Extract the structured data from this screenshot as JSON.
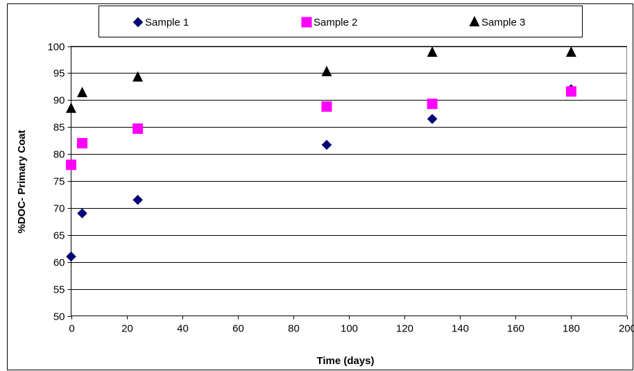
{
  "chart_data": {
    "type": "scatter",
    "title": "",
    "xlabel": "Time (days)",
    "ylabel": "%DOC- Primary Coat",
    "xlim": [
      0,
      200
    ],
    "ylim": [
      50,
      100
    ],
    "x_ticks": [
      0,
      20,
      40,
      60,
      80,
      100,
      120,
      140,
      160,
      180,
      200
    ],
    "y_ticks": [
      50,
      55,
      60,
      65,
      70,
      75,
      80,
      85,
      90,
      95,
      100
    ],
    "grid": "horizontal",
    "legend_position": "top",
    "series": [
      {
        "name": "Sample 1",
        "marker": "diamond",
        "color": "#000080",
        "x": [
          0,
          4,
          24,
          92,
          130,
          180
        ],
        "y": [
          61,
          69,
          71.5,
          81.7,
          86.5,
          92
        ]
      },
      {
        "name": "Sample 2",
        "marker": "square",
        "color": "#FF00FF",
        "x": [
          0,
          4,
          24,
          92,
          130,
          180
        ],
        "y": [
          78,
          82,
          84.7,
          88.8,
          89.3,
          91.6
        ]
      },
      {
        "name": "Sample 3",
        "marker": "triangle",
        "color": "#000000",
        "x": [
          0,
          4,
          24,
          92,
          130,
          180
        ],
        "y": [
          88.4,
          91.3,
          94.2,
          95.2,
          98.8,
          98.8
        ]
      }
    ]
  }
}
